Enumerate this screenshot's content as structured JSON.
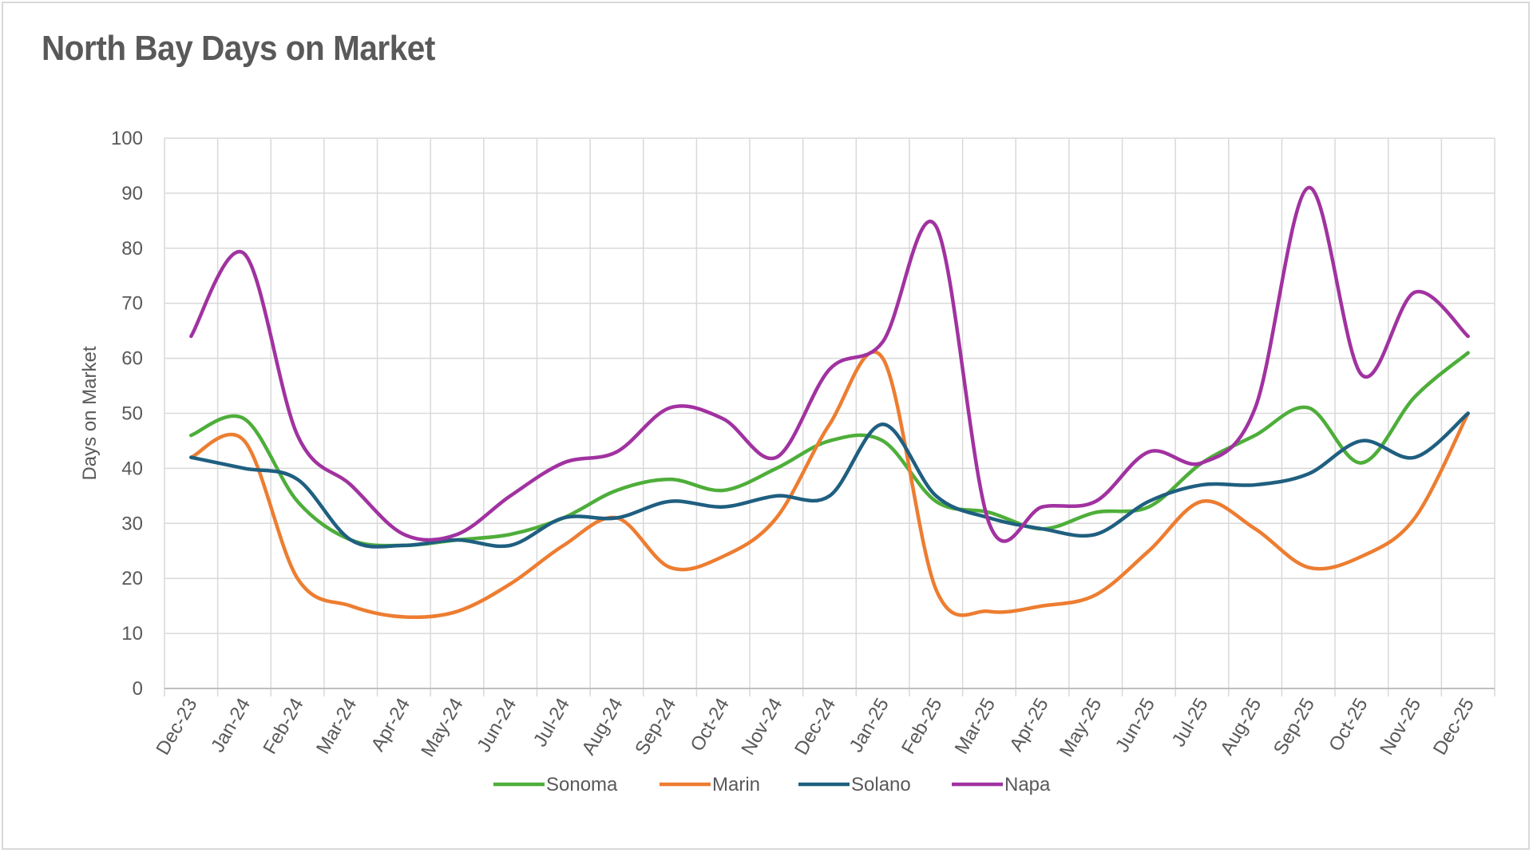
{
  "chart_data": {
    "type": "line",
    "title": "North Bay Days on Market",
    "xlabel": "",
    "ylabel": "Days on Market",
    "ylim": [
      0,
      100
    ],
    "ytick_step": 10,
    "grid": true,
    "legend_position": "bottom",
    "smooth": true,
    "categories": [
      "Dec-23",
      "Jan-24",
      "Feb-24",
      "Mar-24",
      "Apr-24",
      "May-24",
      "Jun-24",
      "Jul-24",
      "Aug-24",
      "Sep-24",
      "Oct-24",
      "Nov-24",
      "Dec-24",
      "Jan-25",
      "Feb-25",
      "Mar-25",
      "Apr-25",
      "May-25",
      "Jun-25",
      "Jul-25",
      "Aug-25",
      "Sep-25",
      "Oct-25",
      "Nov-25",
      "Dec-25"
    ],
    "series": [
      {
        "name": "Sonoma",
        "color": "#4eae3a",
        "values": [
          46,
          49,
          34,
          27,
          26,
          27,
          28,
          31,
          36,
          38,
          36,
          40,
          45,
          45,
          34,
          32,
          29,
          32,
          33,
          41,
          46,
          51,
          41,
          53,
          61
        ]
      },
      {
        "name": "Marin",
        "color": "#ed7d31",
        "values": [
          42,
          45,
          20,
          15,
          13,
          14,
          19,
          26,
          31,
          22,
          24,
          31,
          48,
          60,
          18,
          14,
          15,
          17,
          25,
          34,
          29,
          22,
          24,
          31,
          50
        ]
      },
      {
        "name": "Solano",
        "color": "#1f5f80",
        "values": [
          42,
          40,
          38,
          27,
          26,
          27,
          26,
          31,
          31,
          34,
          33,
          35,
          35,
          48,
          35,
          31,
          29,
          28,
          34,
          37,
          37,
          39,
          45,
          42,
          50
        ]
      },
      {
        "name": "Napa",
        "color": "#a132a0",
        "values": [
          64,
          79,
          46,
          37,
          28,
          28,
          35,
          41,
          43,
          51,
          49,
          42,
          58,
          63,
          84,
          30,
          33,
          34,
          43,
          41,
          51,
          91,
          57,
          72,
          64
        ]
      }
    ]
  }
}
